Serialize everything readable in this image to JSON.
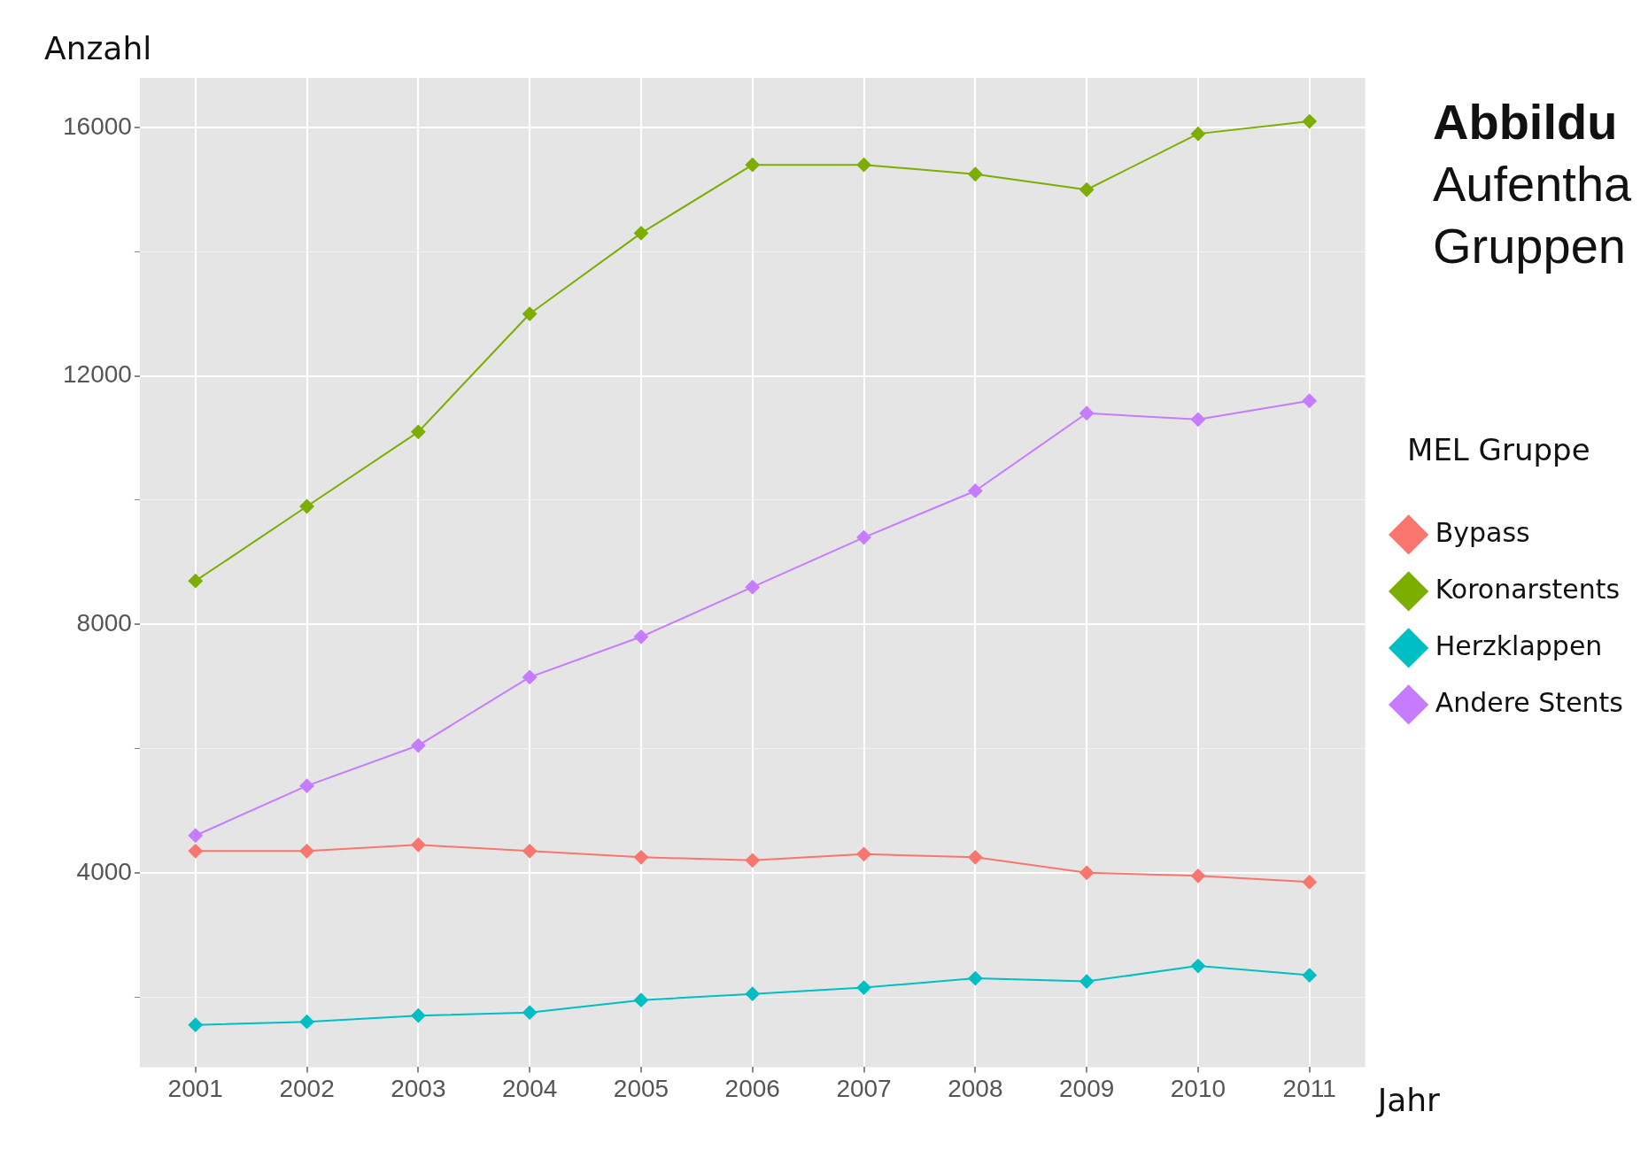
{
  "chart_data": {
    "type": "line",
    "title": "Abbildu",
    "subtitle": "Aufentha\nGruppen",
    "xlabel": "Jahr",
    "ylabel": "Anzahl",
    "legend_title": "MEL Gruppe",
    "categories": [
      "2001",
      "2002",
      "2003",
      "2004",
      "2005",
      "2006",
      "2007",
      "2008",
      "2009",
      "2010",
      "2011"
    ],
    "series": [
      {
        "name": "Bypass",
        "color": "#f8766d",
        "values": [
          4350,
          4350,
          4450,
          4350,
          4250,
          4200,
          4300,
          4250,
          4000,
          3950,
          3850
        ]
      },
      {
        "name": "Koronarstents",
        "color": "#7cae00",
        "values": [
          8700,
          9900,
          11100,
          13000,
          14300,
          15400,
          15400,
          15250,
          15000,
          15900,
          16100
        ]
      },
      {
        "name": "Herzklappen",
        "color": "#00bfc4",
        "values": [
          1550,
          1600,
          1700,
          1750,
          1950,
          2050,
          2150,
          2300,
          2250,
          2500,
          2350
        ]
      },
      {
        "name": "Andere Stents",
        "color": "#c77cff",
        "values": [
          4600,
          5400,
          6050,
          7150,
          7800,
          8600,
          9400,
          10150,
          11400,
          11300,
          11600
        ]
      }
    ],
    "ylim": [
      870,
      16800
    ],
    "yticks": [
      {
        "value": 2000,
        "label": null
      },
      4000,
      {
        "value": 6000,
        "label": null
      },
      8000,
      {
        "value": 10000,
        "label": null
      },
      12000,
      {
        "value": 14000,
        "label": null
      },
      16000
    ],
    "grid": true,
    "legend": "right",
    "marker": "diamond",
    "line_style": "solid"
  }
}
